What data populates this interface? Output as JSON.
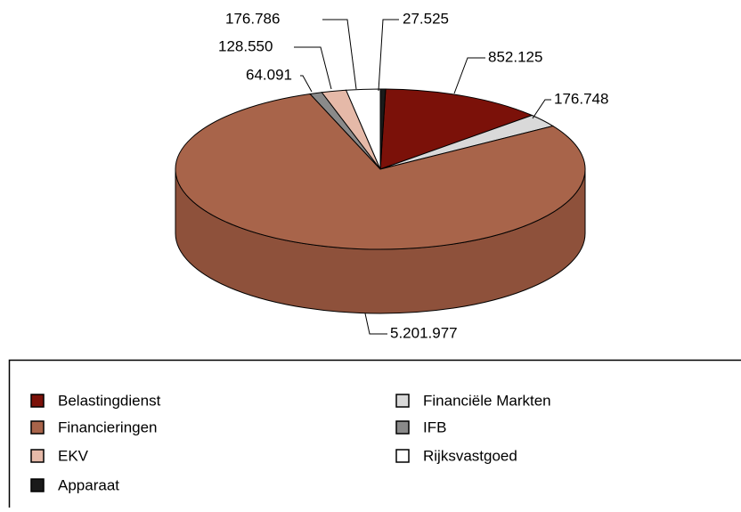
{
  "chart_data": {
    "type": "pie",
    "categories": [
      "Belastingdienst",
      "Financiële Markten",
      "Financieringen",
      "IFB",
      "EKV",
      "Rijksvastgoed",
      "Apparaat"
    ],
    "values": [
      852125,
      176748,
      5201977,
      64091,
      128550,
      176786,
      27525
    ],
    "value_labels": [
      "852.125",
      "176.748",
      "5.201.977",
      "64.091",
      "128.550",
      "176.786",
      "27.525"
    ],
    "colors": [
      "#7b1109",
      "#d9d9d9",
      "#a8644a",
      "#8a8a8a",
      "#e5b9a8",
      "#ffffff",
      "#1a1a1a"
    ],
    "side_colors": [
      "#5e0c06",
      "#b5b5b5",
      "#8e513b",
      "#6e6e6e",
      "#c89c8c",
      "#dddddd",
      "#000000"
    ]
  }
}
